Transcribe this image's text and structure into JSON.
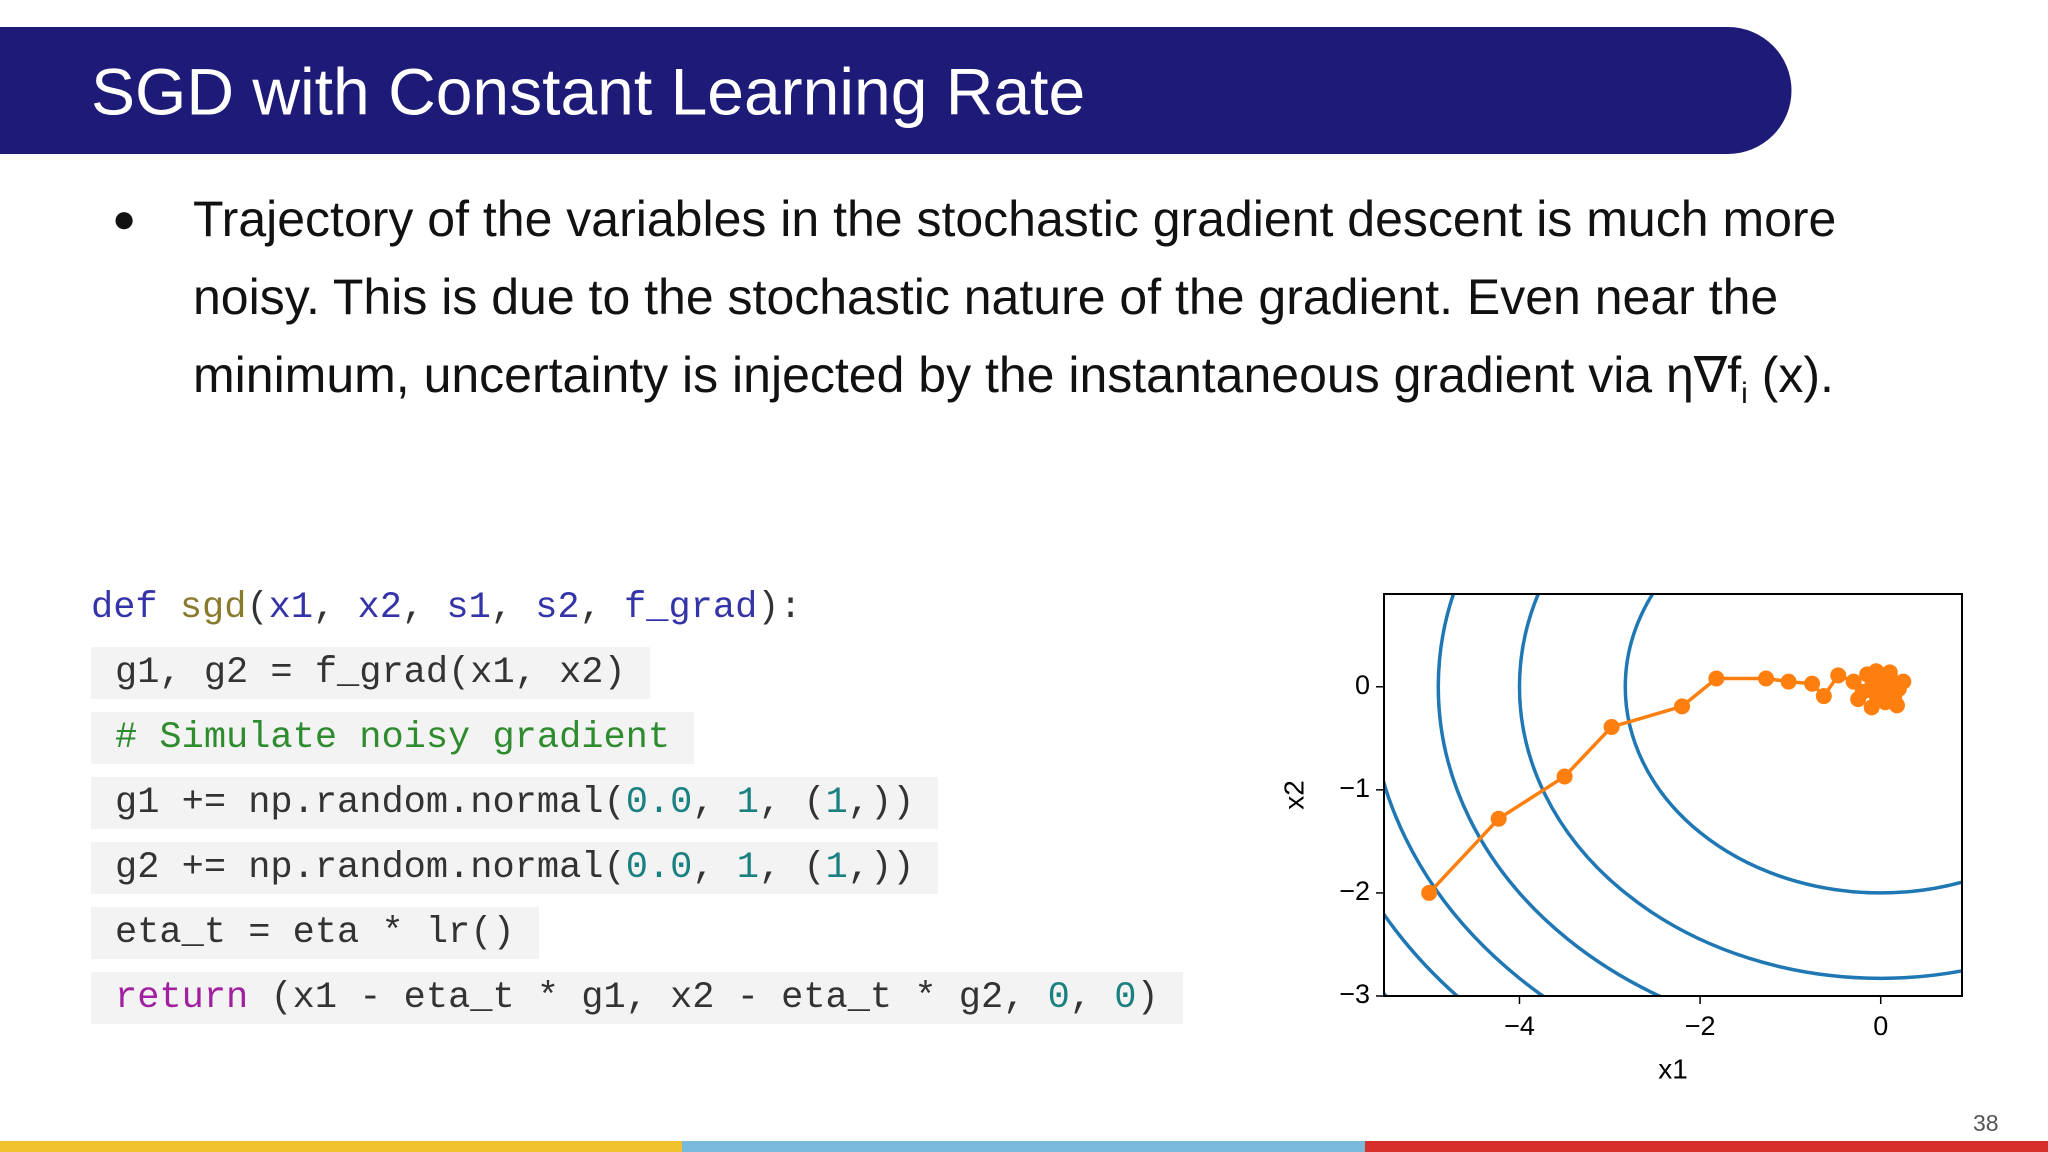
{
  "header": {
    "title": "SGD with Constant Learning Rate"
  },
  "bullets": [
    {
      "text": "Trajectory of the variables in the stochastic gradient descent is much more noisy. This is due to the stochastic nature of the gradient. Even near the minimum, uncertainty is injected by the instantaneous gradient via η∇f",
      "subscript": "i",
      "tail": " (x)."
    }
  ],
  "code": {
    "lines": [
      [
        {
          "text": "def",
          "color": "#3434a8"
        },
        {
          "text": " sgd",
          "color": "#8a7a2e"
        },
        {
          "text": "(",
          "color": "#333333"
        },
        {
          "text": "x1",
          "color": "#3434a8"
        },
        {
          "text": ", ",
          "color": "#333333"
        },
        {
          "text": "x2",
          "color": "#3434a8"
        },
        {
          "text": ", ",
          "color": "#333333"
        },
        {
          "text": "s1",
          "color": "#3434a8"
        },
        {
          "text": ", ",
          "color": "#333333"
        },
        {
          "text": "s2",
          "color": "#3434a8"
        },
        {
          "text": ", ",
          "color": "#333333"
        },
        {
          "text": "f_grad",
          "color": "#3434a8"
        },
        {
          "text": "):",
          "color": "#333333"
        }
      ],
      [
        {
          "text": "g1, g2 = f_grad(x1, x2)",
          "color": "#333333"
        }
      ],
      [
        {
          "text": "# Simulate noisy gradient",
          "color": "#2e8b2e"
        }
      ],
      [
        {
          "text": "g1 += np.random.normal(",
          "color": "#333333"
        },
        {
          "text": "0.0",
          "color": "#1a8080"
        },
        {
          "text": ", ",
          "color": "#333333"
        },
        {
          "text": "1",
          "color": "#1a8080"
        },
        {
          "text": ", (",
          "color": "#333333"
        },
        {
          "text": "1",
          "color": "#1a8080"
        },
        {
          "text": ",))",
          "color": "#333333"
        }
      ],
      [
        {
          "text": "g2 += np.random.normal(",
          "color": "#333333"
        },
        {
          "text": "0.0",
          "color": "#1a8080"
        },
        {
          "text": ", ",
          "color": "#333333"
        },
        {
          "text": "1",
          "color": "#1a8080"
        },
        {
          "text": ", (",
          "color": "#333333"
        },
        {
          "text": "1",
          "color": "#1a8080"
        },
        {
          "text": ",))",
          "color": "#333333"
        }
      ],
      [
        {
          "text": "eta_t = eta * lr()",
          "color": "#333333"
        }
      ],
      [
        {
          "text": "return",
          "color": "#a020a0"
        },
        {
          "text": " (x1 - eta_t * g1, x2 - eta_t * g2, ",
          "color": "#333333"
        },
        {
          "text": "0",
          "color": "#1a8080"
        },
        {
          "text": ", ",
          "color": "#333333"
        },
        {
          "text": "0",
          "color": "#1a8080"
        },
        {
          "text": ")",
          "color": "#333333"
        }
      ]
    ]
  },
  "chart_data": {
    "type": "line",
    "x_label": "x1",
    "y_label": "x2",
    "xlim": [
      -5.5,
      0.9
    ],
    "ylim": [
      -3,
      0.9
    ],
    "xticks": [
      {
        "value": -4,
        "label": "−4"
      },
      {
        "value": -2,
        "label": "−2"
      },
      0
    ],
    "yticks": [
      {
        "value": -3,
        "label": "−3"
      },
      {
        "value": -2,
        "label": "−2"
      },
      {
        "value": -1,
        "label": "−1"
      },
      0
    ],
    "contour_levels": [
      8,
      16,
      24,
      32,
      40,
      48
    ],
    "contour_color": "#1f77b4",
    "x": [
      -5,
      -4.23,
      -3.5,
      -2.98,
      -2.2,
      -1.82,
      -1.27,
      -1.02,
      -0.76,
      -0.63,
      -0.47,
      -0.3,
      -0.05,
      0.15,
      -0.2,
      0.1,
      -0.1,
      0.25,
      0.05,
      -0.15,
      0.2,
      0,
      -0.25,
      0.1,
      -0.05,
      0.18,
      -0.1,
      0.05
    ],
    "series": [
      {
        "color": "#ff7f0e",
        "values": [
          -2,
          -1.28,
          -0.87,
          -0.39,
          -0.19,
          0.08,
          0.08,
          0.05,
          0.03,
          -0.09,
          0.11,
          0.05,
          0.15,
          -0.1,
          -0.05,
          0.1,
          -0.2,
          0.05,
          -0.15,
          0.12,
          -0.02,
          0.02,
          -0.12,
          0.14,
          -0.08,
          -0.18,
          0.0,
          -0.05
        ]
      }
    ]
  },
  "page_number": "38"
}
